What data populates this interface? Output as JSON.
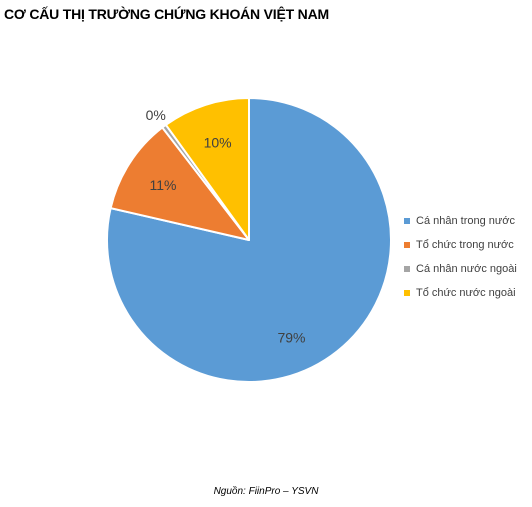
{
  "chart_data": {
    "type": "pie",
    "title": "CƠ CẤU THỊ TRƯỜNG CHỨNG KHOÁN VIỆT NAM",
    "categories": [
      "Cá nhân trong nước",
      "Tổ chức trong nước",
      "Cá nhân nước ngoài",
      "Tổ chức nước ngoài"
    ],
    "values": [
      79,
      11,
      0.5,
      10
    ],
    "data_labels": [
      "79%",
      "11%",
      "0%",
      "10%"
    ],
    "colors": [
      "#5B9BD5",
      "#ED7D31",
      "#A5A5A5",
      "#FFC000"
    ],
    "legend_position": "right",
    "start_angle": "12 o'clock, clockwise",
    "source": "Nguồn: FiinPro – YSVN"
  }
}
